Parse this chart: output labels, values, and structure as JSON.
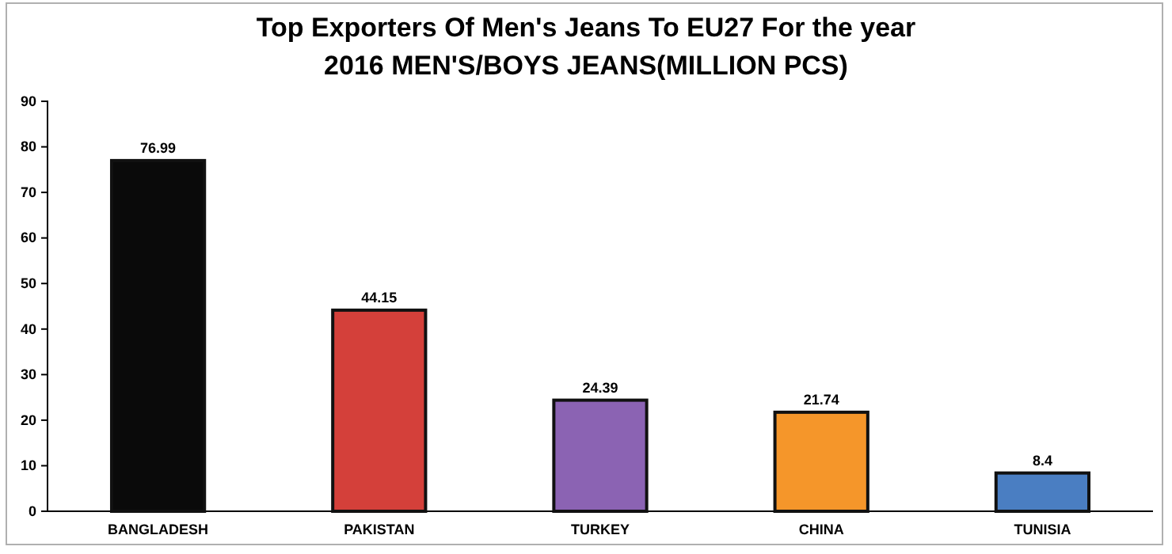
{
  "chart_data": {
    "type": "bar",
    "title": "Top Exporters Of Men's Jeans To EU27 For the year 2016 MEN'S/BOYS JEANS(MILLION PCS)",
    "categories": [
      "BANGLADESH",
      "PAKISTAN",
      "TURKEY",
      "CHINA",
      "TUNISIA"
    ],
    "values": [
      76.99,
      44.15,
      24.39,
      21.74,
      8.4
    ],
    "colors": [
      "#0a0a0a",
      "#d4403a",
      "#8b63b3",
      "#f5962a",
      "#4a7ec2"
    ],
    "ylim": [
      0,
      90
    ],
    "yticks": [
      0,
      10,
      20,
      30,
      40,
      50,
      60,
      70,
      80,
      90
    ],
    "grid": false,
    "data_labels": true
  }
}
